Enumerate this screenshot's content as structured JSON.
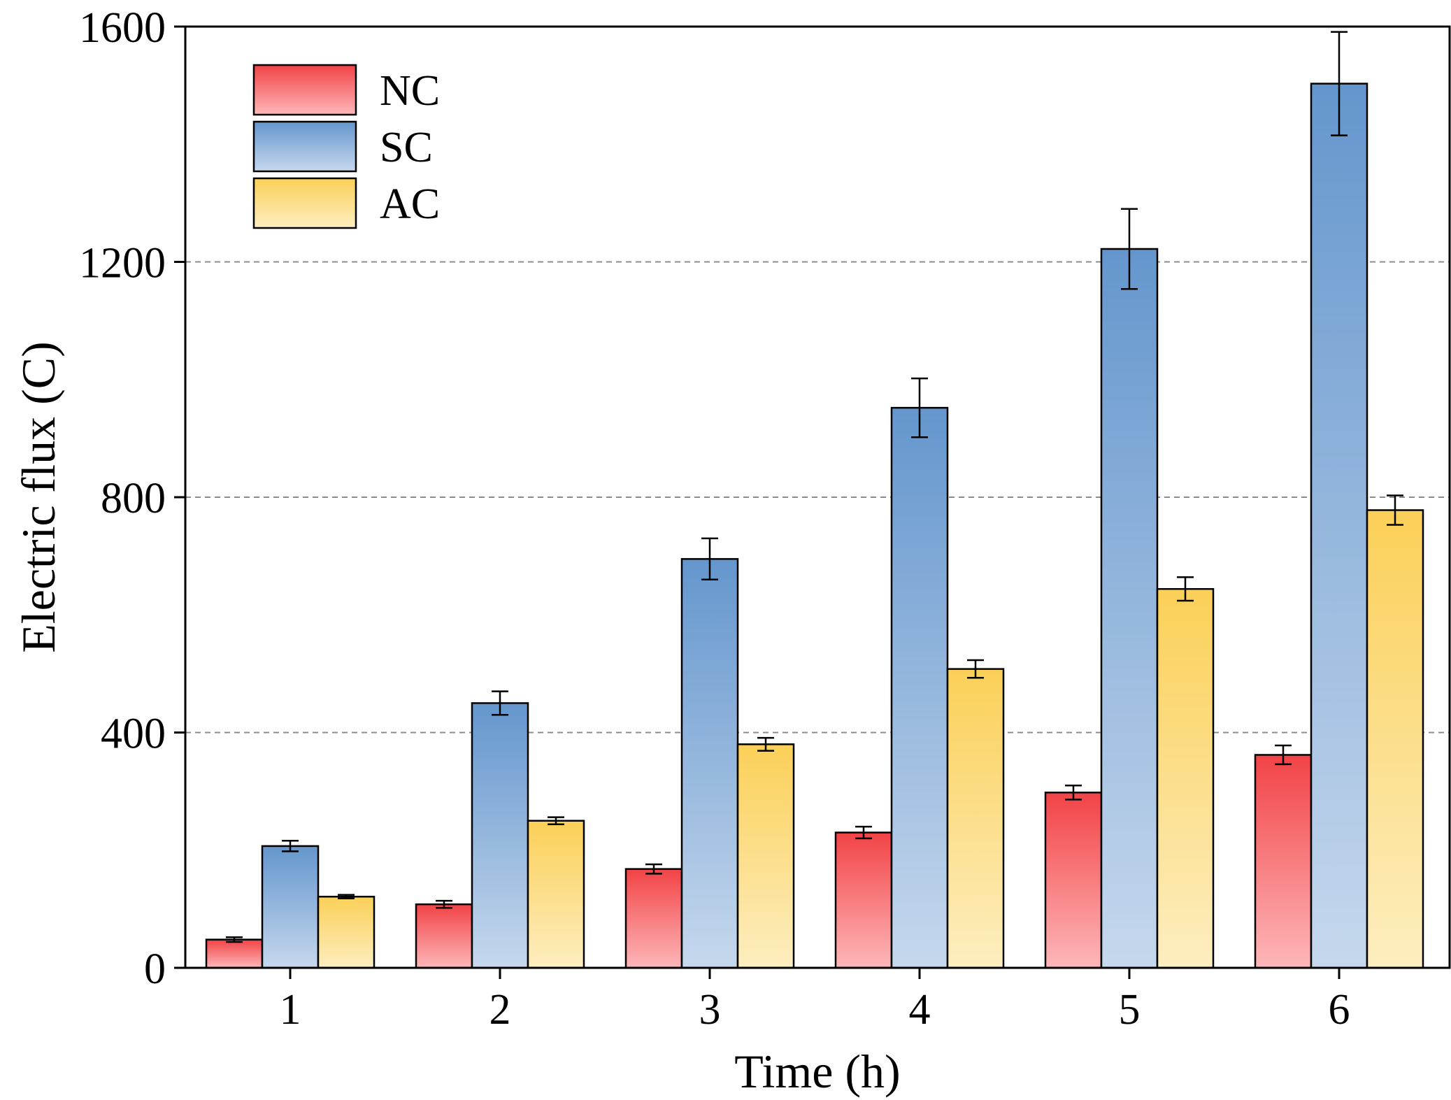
{
  "chart_data": {
    "type": "bar",
    "title": "",
    "xlabel": "Time (h)",
    "ylabel": "Electric flux (C)",
    "categories": [
      "1",
      "2",
      "3",
      "4",
      "5",
      "6"
    ],
    "ylim": [
      0,
      1600
    ],
    "yticks": [
      "0",
      "400",
      "800",
      "1200",
      "1600"
    ],
    "grid": "horizontal dashed",
    "legend_position": "top-left",
    "series": [
      {
        "name": "NC",
        "values": [
          48,
          108,
          168,
          230,
          298,
          362
        ],
        "errors": [
          4,
          6,
          8,
          10,
          12,
          16
        ],
        "color_top": "#f24346",
        "color_bottom": "#fdb7b9"
      },
      {
        "name": "SC",
        "values": [
          207,
          450,
          695,
          952,
          1222,
          1503
        ],
        "errors": [
          9,
          20,
          35,
          50,
          68,
          88
        ],
        "color_top": "#6496cd",
        "color_bottom": "#c6d8ed"
      },
      {
        "name": "AC",
        "values": [
          121,
          250,
          380,
          508,
          644,
          778
        ],
        "errors": [
          3,
          6,
          11,
          15,
          20,
          25
        ],
        "color_top": "#fbd058",
        "color_bottom": "#fdeec0"
      }
    ]
  }
}
